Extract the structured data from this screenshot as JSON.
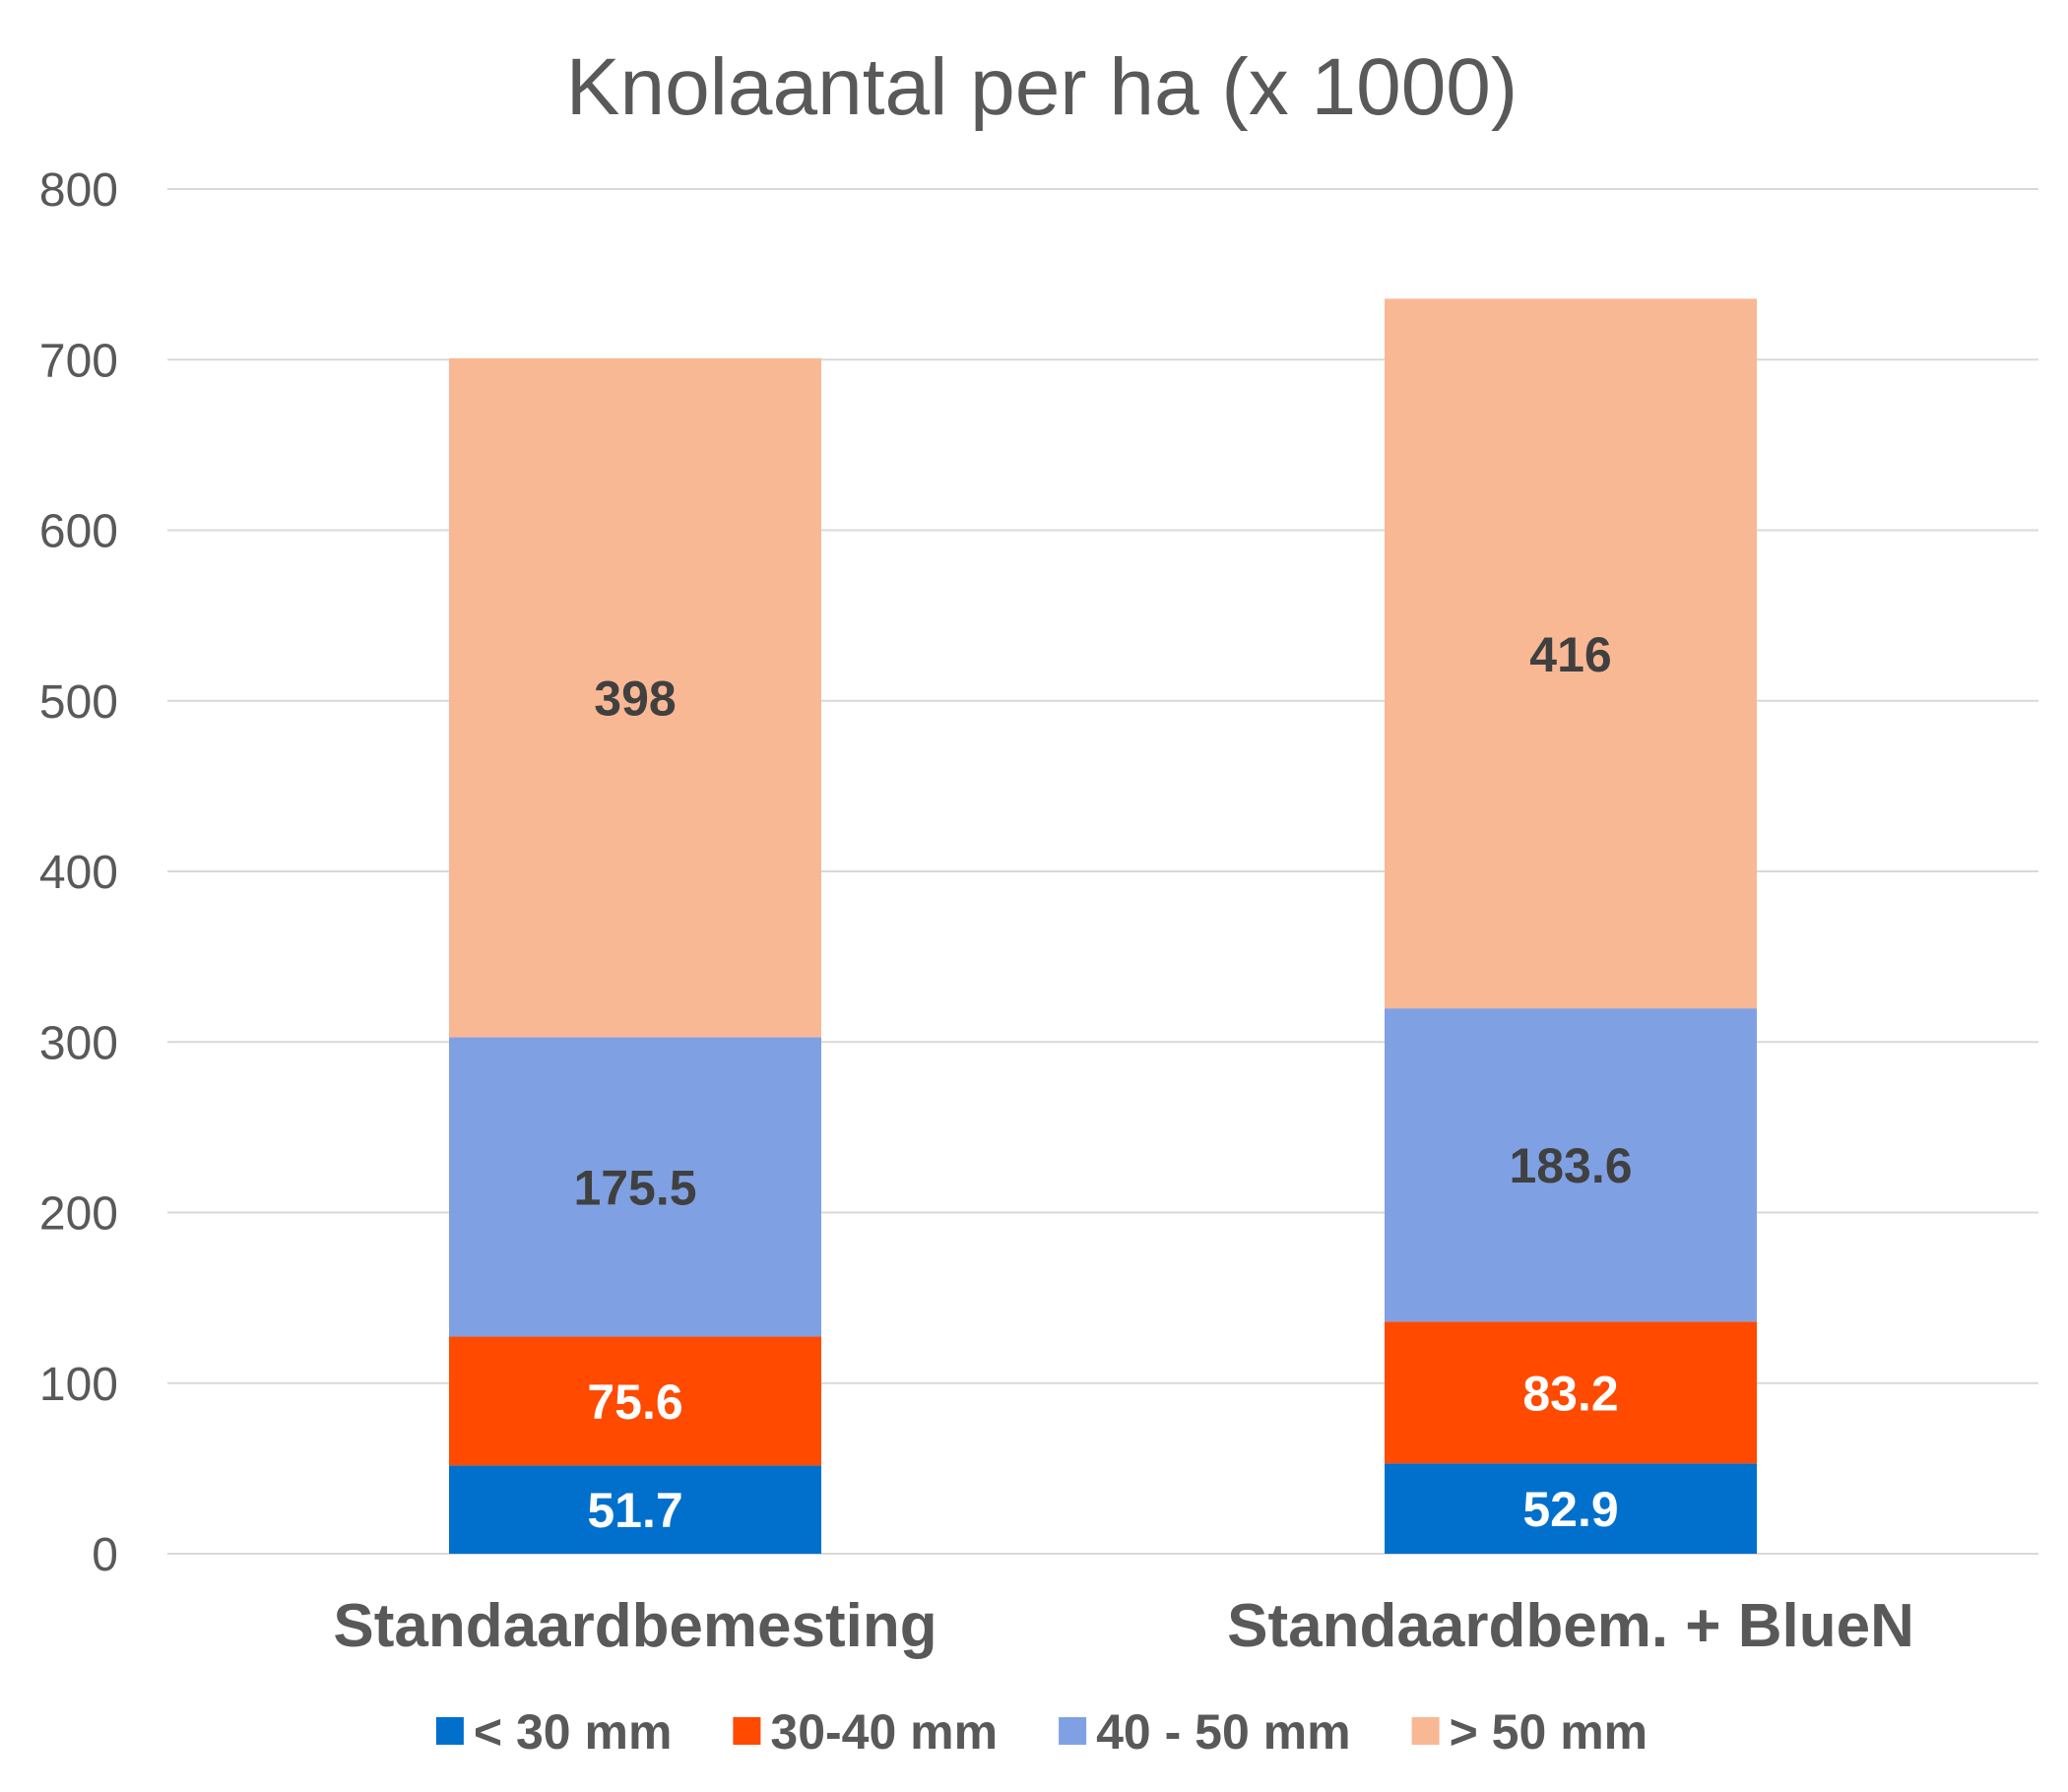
{
  "chart_data": {
    "type": "bar",
    "stacked": true,
    "title": "Knolaantal per ha (x 1000)",
    "xlabel": "",
    "ylabel": "",
    "ylim": [
      0,
      800
    ],
    "yticks": [
      0,
      100,
      200,
      300,
      400,
      500,
      600,
      700,
      800
    ],
    "grid": true,
    "legend": "bottom",
    "categories": [
      "Standaardbemesting",
      "Standaardbem. + BlueN"
    ],
    "series": [
      {
        "name": "< 30 mm",
        "values": [
          51.7,
          52.9
        ],
        "labels": [
          "51.7",
          "52.9"
        ],
        "color": "#0070cc",
        "label_color": "#ffffff"
      },
      {
        "name": "30-40 mm",
        "values": [
          75.6,
          83.2
        ],
        "labels": [
          "75.6",
          "83.2"
        ],
        "color": "#ff4a00",
        "label_color": "#ffffff"
      },
      {
        "name": "40 - 50 mm",
        "values": [
          175.5,
          183.6
        ],
        "labels": [
          "175.5",
          "183.6"
        ],
        "color": "#7fa1e3",
        "label_color": "#404040"
      },
      {
        "name": "> 50 mm",
        "values": [
          398,
          416
        ],
        "labels": [
          "398",
          "416"
        ],
        "color": "#f9b894",
        "label_color": "#404040"
      }
    ]
  }
}
